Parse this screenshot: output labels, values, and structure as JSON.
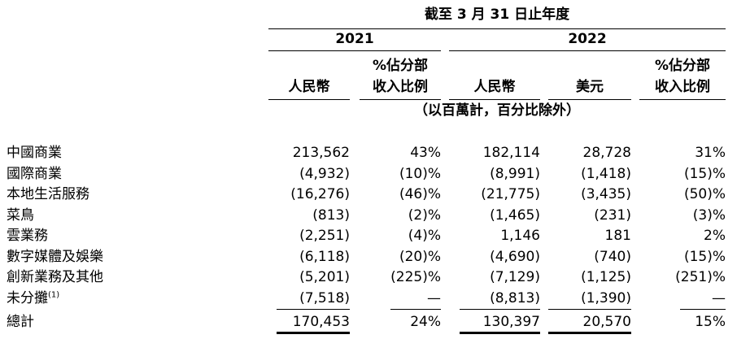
{
  "header": {
    "period": "截至 3 月 31 日止年度",
    "year_2021": "2021",
    "year_2022": "2022",
    "col_rmb_2021": "人民幣",
    "col_pct_2021_line1": "%佔分部",
    "col_pct_2021_line2": "收入比例",
    "col_rmb_2022": "人民幣",
    "col_usd_2022": "美元",
    "col_pct_2022_line1": "%佔分部",
    "col_pct_2022_line2": "收入比例",
    "unit_note": "（以百萬計，百分比除外）"
  },
  "rows": [
    {
      "label": "中國商業",
      "rmb2021": "213,562",
      "pct2021": "43%",
      "rmb2022": "182,114",
      "usd2022": "28,728",
      "pct2022": "31%"
    },
    {
      "label": "國際商業",
      "rmb2021": "(4,932)",
      "pct2021": "(10)%",
      "rmb2022": "(8,991)",
      "usd2022": "(1,418)",
      "pct2022": "(15)%"
    },
    {
      "label": "本地生活服務",
      "rmb2021": "(16,276)",
      "pct2021": "(46)%",
      "rmb2022": "(21,775)",
      "usd2022": "(3,435)",
      "pct2022": "(50)%"
    },
    {
      "label": "菜鳥",
      "rmb2021": "(813)",
      "pct2021": "(2)%",
      "rmb2022": "(1,465)",
      "usd2022": "(231)",
      "pct2022": "(3)%"
    },
    {
      "label": "雲業務",
      "rmb2021": "(2,251)",
      "pct2021": "(4)%",
      "rmb2022": "1,146",
      "usd2022": "181",
      "pct2022": "2%"
    },
    {
      "label": "數字媒體及娛樂",
      "rmb2021": "(6,118)",
      "pct2021": "(20)%",
      "rmb2022": "(4,690)",
      "usd2022": "(740)",
      "pct2022": "(15)%"
    },
    {
      "label": "創新業務及其他",
      "rmb2021": "(5,201)",
      "pct2021": "(225)%",
      "rmb2022": "(7,129)",
      "usd2022": "(1,125)",
      "pct2022": "(251)%"
    },
    {
      "label": "未分攤",
      "footnote": "(1)",
      "rmb2021": "(7,518)",
      "pct2021": "—",
      "rmb2022": "(8,813)",
      "usd2022": "(1,390)",
      "pct2022": "—"
    }
  ],
  "total": {
    "label": "總計",
    "rmb2021": "170,453",
    "pct2021": "24%",
    "rmb2022": "130,397",
    "usd2022": "20,570",
    "pct2022": "15%"
  }
}
